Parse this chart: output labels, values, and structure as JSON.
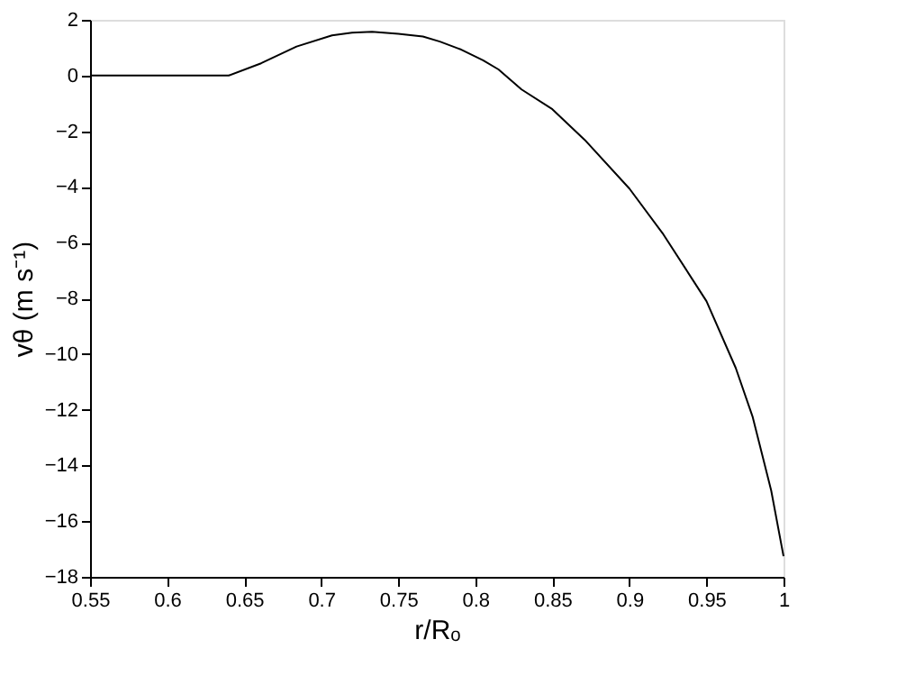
{
  "chart_data": {
    "type": "line",
    "xlabel": "r/Rₒ",
    "ylabel": "vθ (m s⁻¹)",
    "x": [
      0.55,
      0.6,
      0.64,
      0.661,
      0.684,
      0.707,
      0.72,
      0.733,
      0.75,
      0.766,
      0.777,
      0.79,
      0.805,
      0.815,
      0.83,
      0.85,
      0.871,
      0.9,
      0.922,
      0.95,
      0.969,
      0.98,
      0.992,
      1.0
    ],
    "series": [
      {
        "color": "#000000",
        "values": [
          0,
          0,
          0,
          0.44,
          1.04,
          1.44,
          1.54,
          1.57,
          1.5,
          1.4,
          1.22,
          0.95,
          0.55,
          0.22,
          -0.5,
          -1.21,
          -2.31,
          -4.06,
          -5.7,
          -8.1,
          -10.5,
          -12.26,
          -14.9,
          -17.26
        ]
      }
    ],
    "xlim": [
      0.55,
      1
    ],
    "xticks": [
      0.55,
      0.6,
      0.65,
      0.7,
      0.75,
      0.8,
      0.85,
      0.9,
      0.95,
      1
    ],
    "ylim": [
      -18,
      2
    ],
    "yticks": [
      -18,
      -16,
      -14,
      -12,
      -10,
      -8,
      -6,
      -4,
      -2,
      0,
      2
    ],
    "grid": false,
    "marker": "none",
    "line_style": "solid"
  }
}
